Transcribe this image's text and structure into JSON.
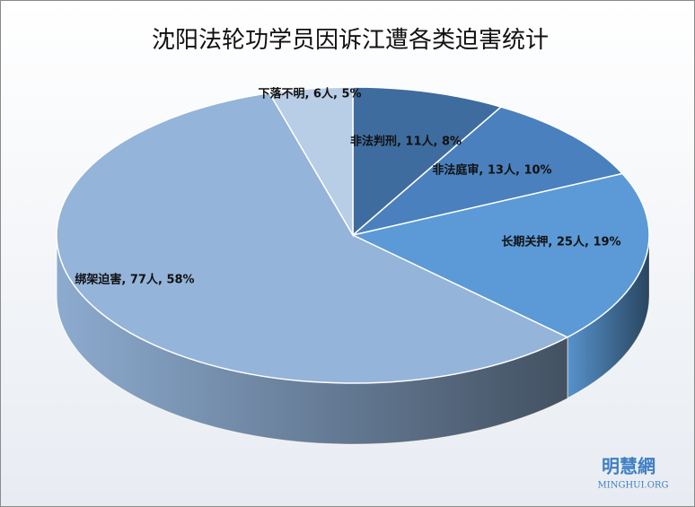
{
  "chart_data": {
    "type": "pie3d",
    "title": "沈阳法轮功学员因诉江遭各类迫害统计",
    "values": [
      11,
      13,
      25,
      77,
      6
    ],
    "value_labels": [
      "非法判刑, 11人, 8%",
      "非法庭审, 13人, 10%",
      "长期关押, 25人, 19%",
      "绑架迫害, 77人, 58%",
      "下落不明, 6人, 5%"
    ],
    "colors": [
      "#3f6c9f",
      "#4a80bd",
      "#5b9ad6",
      "#94b4da",
      "#b8cde6"
    ]
  },
  "watermark": {
    "name": "明慧網",
    "site": "MINGHUI.ORG"
  }
}
